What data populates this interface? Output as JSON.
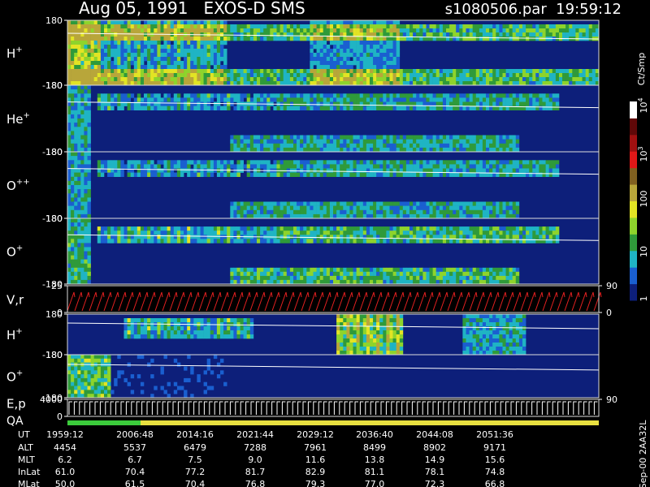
{
  "chart_data": {
    "type": "spectrogram",
    "title": "Aug 05, 1991   EXOS-D SMS",
    "subtitle": "s1080506.par  19:59:12",
    "panels": [
      {
        "label": "H",
        "sup": "+",
        "ylim": [
          -180,
          180
        ],
        "yticks": [
          -180,
          180
        ]
      },
      {
        "label": "He",
        "sup": "+",
        "ylim": [
          -180,
          180
        ],
        "yticks": [
          -180,
          180
        ]
      },
      {
        "label": "O",
        "sup": "++",
        "ylim": [
          -180,
          180
        ],
        "yticks": [
          -180,
          180
        ]
      },
      {
        "label": "O",
        "sup": "+",
        "ylim": [
          -180,
          180
        ],
        "yticks": [
          -180,
          180
        ]
      },
      {
        "label": "V,r",
        "ylim": [
          0,
          25
        ],
        "yticks": [
          0,
          25
        ],
        "y2lim": [
          0,
          90
        ],
        "y2ticks": [
          0,
          90
        ]
      },
      {
        "label": "H",
        "sup": "+",
        "ylim": [
          -180,
          180
        ],
        "yticks": [
          -180,
          180
        ]
      },
      {
        "label": "O",
        "sup": "+",
        "ylim": [
          -180,
          180
        ],
        "yticks": [
          -180,
          180
        ]
      },
      {
        "label": "E,p",
        "label2": "QA",
        "ylim": [
          0,
          4000
        ],
        "yticks": [
          0,
          4000
        ],
        "y2lim": [
          0,
          90
        ],
        "y2ticks": [
          90
        ]
      }
    ],
    "colorbar": {
      "title": "Ct/Smp",
      "ticks": [
        {
          "text": "1"
        },
        {
          "text": "10"
        },
        {
          "text": "100"
        },
        {
          "text": "10",
          "sup": "3"
        },
        {
          "text": "10",
          "sup": "4"
        }
      ]
    },
    "table": {
      "rows": [
        {
          "label": "UT",
          "values": [
            "1959:12",
            "2006:48",
            "2014:16",
            "2021:44",
            "2029:12",
            "2036:40",
            "2044:08",
            "2051:36"
          ]
        },
        {
          "label": "ALT",
          "values": [
            "4454",
            "5537",
            "6479",
            "7288",
            "7961",
            "8499",
            "8902",
            "9171"
          ]
        },
        {
          "label": "MLT",
          "values": [
            "6.2",
            "6.7",
            "7.5",
            "9.0",
            "11.6",
            "13.8",
            "14.9",
            "15.6"
          ]
        },
        {
          "label": "InLat",
          "values": [
            "61.0",
            "70.4",
            "77.2",
            "81.7",
            "82.9",
            "81.1",
            "78.1",
            "74.8"
          ]
        },
        {
          "label": "MLat",
          "values": [
            "50.0",
            "61.5",
            "70.4",
            "76.8",
            "79.3",
            "77.0",
            "72.3",
            "66.8"
          ]
        }
      ]
    },
    "footnote": "Sep-00 2AA32L"
  }
}
